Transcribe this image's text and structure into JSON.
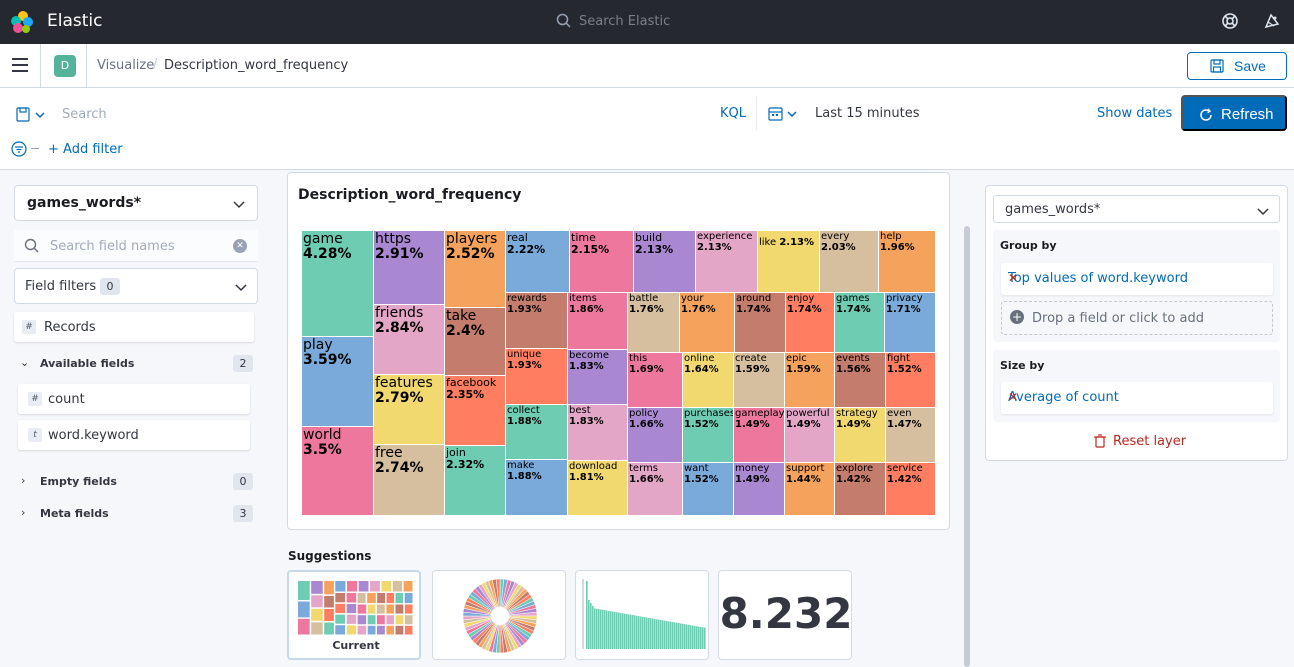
{
  "header": {
    "brand": "Elastic",
    "search_placeholder": "Search Elastic",
    "icons": [
      "elastic-logo-icon",
      "help-lifebuoy-icon",
      "newsfeed-icon"
    ]
  },
  "breadcrumb": {
    "space_initial": "D",
    "items": [
      "Visualize",
      "Description_word_frequency"
    ],
    "save_label": "Save"
  },
  "query": {
    "search_placeholder": "Search",
    "language": "KQL",
    "time_range": "Last 15 minutes",
    "show_dates": "Show dates",
    "refresh_label": "Refresh",
    "add_filter": "+ Add filter"
  },
  "sidebar": {
    "index_pattern": "games_words*",
    "search_placeholder": "Search field names",
    "field_filters_label": "Field filters",
    "field_filters_count": "0",
    "records_label": "Records",
    "available_fields_label": "Available fields",
    "available_fields_count": "2",
    "fields": [
      {
        "type": "#",
        "name": "count"
      },
      {
        "type": "t",
        "name": "word.keyword"
      }
    ],
    "empty_fields_label": "Empty fields",
    "empty_fields_count": "0",
    "meta_fields_label": "Meta fields",
    "meta_fields_count": "3"
  },
  "workspace": {
    "title": "Description_word_frequency",
    "suggestions_title": "Suggestions",
    "suggestion_current_label": "Current",
    "metric_value": "8.232"
  },
  "config": {
    "index_pattern": "games_words*",
    "group_by_label": "Group by",
    "group_by_value": "Top values of word.keyword",
    "drop_field_label": "Drop a field or click to add",
    "size_by_label": "Size by",
    "size_by_value": "Average of count",
    "reset_layer": "Reset layer"
  },
  "chart_data": {
    "type": "treemap",
    "title": "Description_word_frequency",
    "items": [
      {
        "word": "game",
        "percent": "4.28%",
        "color": "#6dccb1"
      },
      {
        "word": "play",
        "percent": "3.59%",
        "color": "#79aad9"
      },
      {
        "word": "world",
        "percent": "3.5%",
        "color": "#ee789d"
      },
      {
        "word": "https",
        "percent": "2.91%",
        "color": "#a987d1"
      },
      {
        "word": "friends",
        "percent": "2.84%",
        "color": "#e4a6c7"
      },
      {
        "word": "features",
        "percent": "2.79%",
        "color": "#f1d86f"
      },
      {
        "word": "free",
        "percent": "2.74%",
        "color": "#d6bf9f"
      },
      {
        "word": "players",
        "percent": "2.52%",
        "color": "#f5a35c"
      },
      {
        "word": "take",
        "percent": "2.4%",
        "color": "#c47c6c"
      },
      {
        "word": "facebook",
        "percent": "2.35%",
        "color": "#ff7e62"
      },
      {
        "word": "join",
        "percent": "2.32%",
        "color": "#6dccb1"
      },
      {
        "word": "real",
        "percent": "2.22%",
        "color": "#79aad9"
      },
      {
        "word": "time",
        "percent": "2.15%",
        "color": "#ee789d"
      },
      {
        "word": "build",
        "percent": "2.13%",
        "color": "#a987d1"
      },
      {
        "word": "experience",
        "percent": "2.13%",
        "color": "#e4a6c7"
      },
      {
        "word": "like",
        "percent": "2.13%",
        "color": "#f1d86f"
      },
      {
        "word": "every",
        "percent": "2.03%",
        "color": "#d6bf9f"
      },
      {
        "word": "help",
        "percent": "1.96%",
        "color": "#f5a35c"
      },
      {
        "word": "rewards",
        "percent": "1.93%",
        "color": "#c47c6c"
      },
      {
        "word": "unique",
        "percent": "1.93%",
        "color": "#ff7e62"
      },
      {
        "word": "collect",
        "percent": "1.88%",
        "color": "#6dccb1"
      },
      {
        "word": "make",
        "percent": "1.88%",
        "color": "#79aad9"
      },
      {
        "word": "items",
        "percent": "1.86%",
        "color": "#ee789d"
      },
      {
        "word": "become",
        "percent": "1.83%",
        "color": "#a987d1"
      },
      {
        "word": "best",
        "percent": "1.83%",
        "color": "#e4a6c7"
      },
      {
        "word": "download",
        "percent": "1.81%",
        "color": "#f1d86f"
      },
      {
        "word": "battle",
        "percent": "1.76%",
        "color": "#d6bf9f"
      },
      {
        "word": "your",
        "percent": "1.76%",
        "color": "#f5a35c"
      },
      {
        "word": "around",
        "percent": "1.74%",
        "color": "#c47c6c"
      },
      {
        "word": "enjoy",
        "percent": "1.74%",
        "color": "#ff7e62"
      },
      {
        "word": "games",
        "percent": "1.74%",
        "color": "#6dccb1"
      },
      {
        "word": "privacy",
        "percent": "1.71%",
        "color": "#79aad9"
      },
      {
        "word": "this",
        "percent": "1.69%",
        "color": "#ee789d"
      },
      {
        "word": "online",
        "percent": "1.64%",
        "color": "#f1d86f"
      },
      {
        "word": "create",
        "percent": "1.59%",
        "color": "#d6bf9f"
      },
      {
        "word": "epic",
        "percent": "1.59%",
        "color": "#f5a35c"
      },
      {
        "word": "events",
        "percent": "1.56%",
        "color": "#c47c6c"
      },
      {
        "word": "fight",
        "percent": "1.52%",
        "color": "#ff7e62"
      },
      {
        "word": "policy",
        "percent": "1.66%",
        "color": "#a987d1"
      },
      {
        "word": "purchases",
        "percent": "1.52%",
        "color": "#6dccb1"
      },
      {
        "word": "gameplay",
        "percent": "1.49%",
        "color": "#ee789d"
      },
      {
        "word": "powerful",
        "percent": "1.49%",
        "color": "#e4a6c7"
      },
      {
        "word": "strategy",
        "percent": "1.49%",
        "color": "#f1d86f"
      },
      {
        "word": "even",
        "percent": "1.47%",
        "color": "#d6bf9f"
      },
      {
        "word": "terms",
        "percent": "1.66%",
        "color": "#e4a6c7"
      },
      {
        "word": "want",
        "percent": "1.52%",
        "color": "#79aad9"
      },
      {
        "word": "money",
        "percent": "1.49%",
        "color": "#a987d1"
      },
      {
        "word": "support",
        "percent": "1.44%",
        "color": "#f5a35c"
      },
      {
        "word": "explore",
        "percent": "1.42%",
        "color": "#c47c6c"
      },
      {
        "word": "service",
        "percent": "1.42%",
        "color": "#ff7e62"
      }
    ]
  }
}
